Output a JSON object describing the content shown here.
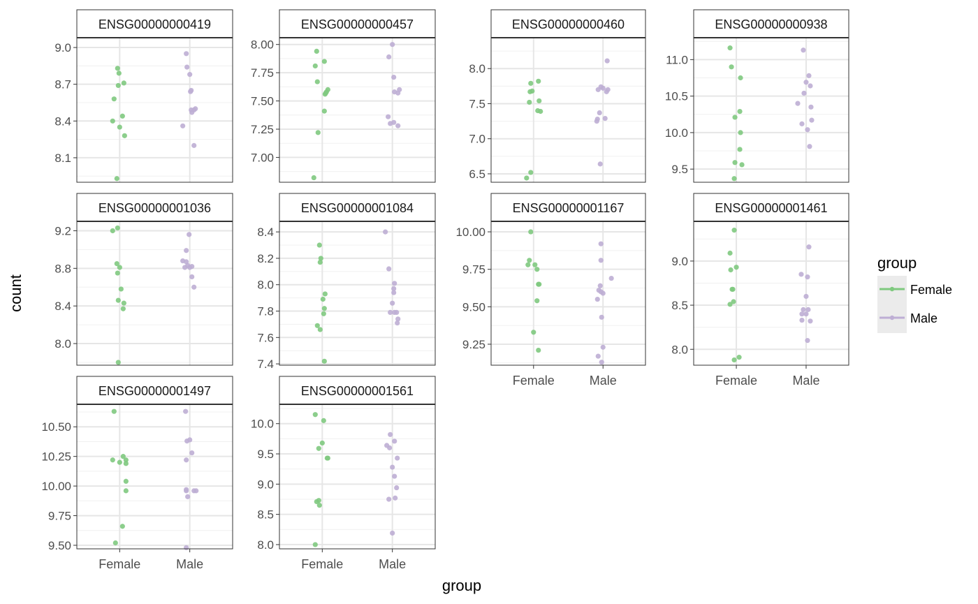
{
  "chart_data": {
    "type": "scatter",
    "xlabel": "group",
    "ylabel": "count",
    "categories": [
      "Female",
      "Male"
    ],
    "legend": {
      "title": "group",
      "placement": "right",
      "entries": [
        {
          "name": "Female",
          "color": "#7fc97f"
        },
        {
          "name": "Male",
          "color": "#beaed4"
        }
      ]
    },
    "grid": true,
    "facets": [
      {
        "title": "ENSG00000000419",
        "ylim": [
          7.9,
          9.08
        ],
        "yticks": [
          "8.1",
          "8.4",
          "8.7",
          "9.0"
        ],
        "yticks_values": [
          8.1,
          8.4,
          8.7,
          9.0
        ],
        "female": [
          [
            -0.03,
            8.83
          ],
          [
            -0.01,
            8.79
          ],
          [
            -0.02,
            8.69
          ],
          [
            0.06,
            8.71
          ],
          [
            -0.08,
            8.58
          ],
          [
            0.04,
            8.44
          ],
          [
            -0.1,
            8.4
          ],
          [
            0.0,
            8.35
          ],
          [
            0.07,
            8.28
          ],
          [
            -0.04,
            7.93
          ]
        ],
        "male": [
          [
            -0.05,
            8.95
          ],
          [
            -0.04,
            8.84
          ],
          [
            0.0,
            8.78
          ],
          [
            0.02,
            8.65
          ],
          [
            0.01,
            8.64
          ],
          [
            0.08,
            8.5
          ],
          [
            0.02,
            8.49
          ],
          [
            0.06,
            8.49
          ],
          [
            0.03,
            8.47
          ],
          [
            -0.1,
            8.36
          ],
          [
            0.06,
            8.2
          ]
        ]
      },
      {
        "title": "ENSG00000000457",
        "ylim": [
          6.78,
          8.06
        ],
        "yticks": [
          "7.00",
          "7.25",
          "7.50",
          "7.75",
          "8.00"
        ],
        "yticks_values": [
          7.0,
          7.25,
          7.5,
          7.75,
          8.0
        ],
        "female": [
          [
            -0.08,
            7.94
          ],
          [
            0.03,
            7.85
          ],
          [
            -0.1,
            7.81
          ],
          [
            -0.07,
            7.67
          ],
          [
            0.08,
            7.6
          ],
          [
            0.06,
            7.58
          ],
          [
            0.04,
            7.56
          ],
          [
            0.05,
            7.57
          ],
          [
            0.03,
            7.41
          ],
          [
            -0.06,
            7.22
          ],
          [
            -0.12,
            6.82
          ]
        ],
        "male": [
          [
            0.0,
            8.0
          ],
          [
            -0.05,
            7.89
          ],
          [
            0.02,
            7.71
          ],
          [
            0.1,
            7.6
          ],
          [
            0.08,
            7.57
          ],
          [
            0.03,
            7.58
          ],
          [
            -0.06,
            7.36
          ],
          [
            0.02,
            7.31
          ],
          [
            -0.03,
            7.3
          ],
          [
            0.08,
            7.28
          ]
        ]
      },
      {
        "title": "ENSG00000000460",
        "ylim": [
          6.38,
          8.44
        ],
        "yticks": [
          "6.5",
          "7.0",
          "7.5",
          "8.0"
        ],
        "yticks_values": [
          6.5,
          7.0,
          7.5,
          8.0
        ],
        "female": [
          [
            0.07,
            7.82
          ],
          [
            -0.04,
            7.79
          ],
          [
            -0.02,
            7.68
          ],
          [
            -0.05,
            7.67
          ],
          [
            0.08,
            7.54
          ],
          [
            -0.06,
            7.52
          ],
          [
            0.06,
            7.4
          ],
          [
            0.1,
            7.39
          ],
          [
            -0.04,
            6.52
          ],
          [
            -0.1,
            6.44
          ]
        ],
        "male": [
          [
            -0.03,
            7.74
          ],
          [
            0.0,
            7.72
          ],
          [
            0.07,
            7.7
          ],
          [
            -0.07,
            7.7
          ],
          [
            0.05,
            7.67
          ],
          [
            -0.05,
            7.37
          ],
          [
            0.03,
            7.29
          ],
          [
            -0.08,
            7.28
          ],
          [
            -0.09,
            7.25
          ],
          [
            -0.04,
            6.64
          ],
          [
            0.06,
            8.11
          ]
        ]
      },
      {
        "title": "ENSG00000000938",
        "ylim": [
          9.32,
          11.3
        ],
        "yticks": [
          "9.5",
          "10.0",
          "10.5",
          "11.0"
        ],
        "yticks_values": [
          9.5,
          10.0,
          10.5,
          11.0
        ],
        "female": [
          [
            -0.09,
            11.16
          ],
          [
            -0.07,
            10.9
          ],
          [
            0.06,
            10.75
          ],
          [
            0.05,
            10.29
          ],
          [
            -0.02,
            10.21
          ],
          [
            0.06,
            10.0
          ],
          [
            0.05,
            9.77
          ],
          [
            -0.02,
            9.59
          ],
          [
            0.08,
            9.56
          ],
          [
            -0.03,
            9.37
          ]
        ],
        "male": [
          [
            -0.04,
            11.13
          ],
          [
            0.04,
            10.78
          ],
          [
            0.0,
            10.69
          ],
          [
            0.06,
            10.64
          ],
          [
            -0.03,
            10.54
          ],
          [
            -0.12,
            10.4
          ],
          [
            0.07,
            10.35
          ],
          [
            0.08,
            10.17
          ],
          [
            -0.06,
            10.12
          ],
          [
            0.02,
            10.04
          ],
          [
            0.05,
            9.81
          ]
        ]
      },
      {
        "title": "ENSG00000001036",
        "ylim": [
          7.77,
          9.3
        ],
        "yticks": [
          "8.0",
          "8.4",
          "8.8",
          "9.2"
        ],
        "yticks_values": [
          8.0,
          8.4,
          8.8,
          9.2
        ],
        "female": [
          [
            -0.03,
            9.23
          ],
          [
            -0.1,
            9.2
          ],
          [
            -0.04,
            8.85
          ],
          [
            0.0,
            8.81
          ],
          [
            -0.03,
            8.75
          ],
          [
            0.02,
            8.58
          ],
          [
            -0.02,
            8.46
          ],
          [
            0.06,
            8.43
          ],
          [
            0.05,
            8.37
          ],
          [
            -0.02,
            7.8
          ]
        ],
        "male": [
          [
            -0.01,
            9.16
          ],
          [
            -0.05,
            8.99
          ],
          [
            -0.1,
            8.88
          ],
          [
            -0.05,
            8.87
          ],
          [
            0.0,
            8.81
          ],
          [
            -0.07,
            8.81
          ],
          [
            -0.03,
            8.83
          ],
          [
            0.03,
            8.82
          ],
          [
            0.03,
            8.71
          ],
          [
            0.06,
            8.6
          ]
        ]
      },
      {
        "title": "ENSG00000001084",
        "ylim": [
          7.39,
          8.48
        ],
        "yticks": [
          "7.4",
          "7.6",
          "7.8",
          "8.0",
          "8.2",
          "8.4"
        ],
        "yticks_values": [
          7.4,
          7.6,
          7.8,
          8.0,
          8.2,
          8.4
        ],
        "female": [
          [
            -0.04,
            8.3
          ],
          [
            -0.02,
            8.2
          ],
          [
            -0.03,
            8.17
          ],
          [
            0.04,
            7.93
          ],
          [
            0.01,
            7.89
          ],
          [
            0.03,
            7.82
          ],
          [
            0.02,
            7.78
          ],
          [
            -0.07,
            7.69
          ],
          [
            -0.03,
            7.66
          ],
          [
            0.03,
            7.42
          ]
        ],
        "male": [
          [
            -0.1,
            8.4
          ],
          [
            -0.05,
            8.12
          ],
          [
            0.03,
            8.01
          ],
          [
            0.02,
            7.97
          ],
          [
            0.02,
            7.94
          ],
          [
            0.0,
            7.86
          ],
          [
            -0.03,
            7.79
          ],
          [
            0.03,
            7.79
          ],
          [
            0.06,
            7.79
          ],
          [
            0.08,
            7.74
          ],
          [
            0.07,
            7.71
          ]
        ]
      },
      {
        "title": "ENSG00000001167",
        "ylim": [
          9.11,
          10.07
        ],
        "yticks": [
          "9.25",
          "9.50",
          "9.75",
          "10.00"
        ],
        "yticks_values": [
          9.25,
          9.5,
          9.75,
          10.0
        ],
        "female": [
          [
            -0.04,
            10.0
          ],
          [
            -0.06,
            9.81
          ],
          [
            -0.08,
            9.78
          ],
          [
            0.02,
            9.78
          ],
          [
            0.05,
            9.75
          ],
          [
            0.07,
            9.65
          ],
          [
            0.08,
            9.65
          ],
          [
            0.05,
            9.54
          ],
          [
            0.0,
            9.33
          ],
          [
            0.07,
            9.21
          ]
        ],
        "male": [
          [
            -0.03,
            9.92
          ],
          [
            -0.03,
            9.81
          ],
          [
            0.12,
            9.69
          ],
          [
            -0.04,
            9.64
          ],
          [
            -0.06,
            9.61
          ],
          [
            -0.03,
            9.6
          ],
          [
            0.0,
            9.59
          ],
          [
            -0.08,
            9.55
          ],
          [
            -0.02,
            9.43
          ],
          [
            0.0,
            9.23
          ],
          [
            -0.07,
            9.17
          ],
          [
            -0.02,
            9.13
          ]
        ]
      },
      {
        "title": "ENSG00000001461",
        "ylim": [
          7.82,
          9.45
        ],
        "yticks": [
          "8.0",
          "8.5",
          "9.0"
        ],
        "yticks_values": [
          8.0,
          8.5,
          9.0
        ],
        "female": [
          [
            -0.03,
            9.35
          ],
          [
            -0.09,
            9.09
          ],
          [
            -0.08,
            8.9
          ],
          [
            0.0,
            8.93
          ],
          [
            -0.06,
            8.68
          ],
          [
            -0.05,
            8.68
          ],
          [
            -0.04,
            8.54
          ],
          [
            -0.09,
            8.51
          ],
          [
            0.04,
            7.91
          ],
          [
            -0.03,
            7.88
          ]
        ],
        "male": [
          [
            0.04,
            9.16
          ],
          [
            -0.07,
            8.85
          ],
          [
            0.02,
            8.82
          ],
          [
            0.0,
            8.6
          ],
          [
            0.03,
            8.45
          ],
          [
            -0.04,
            8.45
          ],
          [
            -0.06,
            8.4
          ],
          [
            0.0,
            8.4
          ],
          [
            -0.06,
            8.33
          ],
          [
            0.06,
            8.32
          ],
          [
            0.02,
            8.1
          ]
        ]
      },
      {
        "title": "ENSG00000001497",
        "ylim": [
          9.47,
          10.69
        ],
        "yticks": [
          "9.50",
          "9.75",
          "10.00",
          "10.25",
          "10.50"
        ],
        "yticks_values": [
          9.5,
          9.75,
          10.0,
          10.25,
          10.5
        ],
        "female": [
          [
            -0.08,
            10.63
          ],
          [
            0.05,
            10.25
          ],
          [
            -0.1,
            10.22
          ],
          [
            0.09,
            10.22
          ],
          [
            0.0,
            10.2
          ],
          [
            0.09,
            10.19
          ],
          [
            0.09,
            10.04
          ],
          [
            0.09,
            9.96
          ],
          [
            0.04,
            9.66
          ],
          [
            -0.06,
            9.52
          ]
        ],
        "male": [
          [
            -0.06,
            10.63
          ],
          [
            0.0,
            10.39
          ],
          [
            -0.04,
            10.38
          ],
          [
            0.03,
            10.28
          ],
          [
            -0.05,
            10.22
          ],
          [
            -0.05,
            9.96
          ],
          [
            -0.05,
            9.97
          ],
          [
            0.06,
            9.96
          ],
          [
            0.09,
            9.96
          ],
          [
            -0.03,
            9.91
          ],
          [
            -0.05,
            9.48
          ]
        ]
      },
      {
        "title": "ENSG00000001561",
        "ylim": [
          7.93,
          10.32
        ],
        "yticks": [
          "8.0",
          "8.5",
          "9.0",
          "9.5",
          "10.0"
        ],
        "yticks_values": [
          8.0,
          8.5,
          9.0,
          9.5,
          10.0
        ],
        "female": [
          [
            -0.1,
            10.15
          ],
          [
            0.02,
            10.05
          ],
          [
            0.0,
            9.68
          ],
          [
            -0.05,
            9.59
          ],
          [
            0.07,
            9.43
          ],
          [
            0.08,
            9.43
          ],
          [
            -0.08,
            8.71
          ],
          [
            -0.05,
            8.73
          ],
          [
            -0.04,
            8.65
          ],
          [
            -0.1,
            8.0
          ]
        ],
        "male": [
          [
            -0.03,
            9.82
          ],
          [
            0.03,
            9.71
          ],
          [
            -0.08,
            9.64
          ],
          [
            -0.04,
            9.6
          ],
          [
            0.07,
            9.43
          ],
          [
            0.0,
            9.28
          ],
          [
            0.03,
            9.13
          ],
          [
            0.06,
            8.94
          ],
          [
            -0.05,
            8.75
          ],
          [
            0.04,
            8.77
          ],
          [
            0.0,
            8.19
          ]
        ]
      }
    ]
  }
}
